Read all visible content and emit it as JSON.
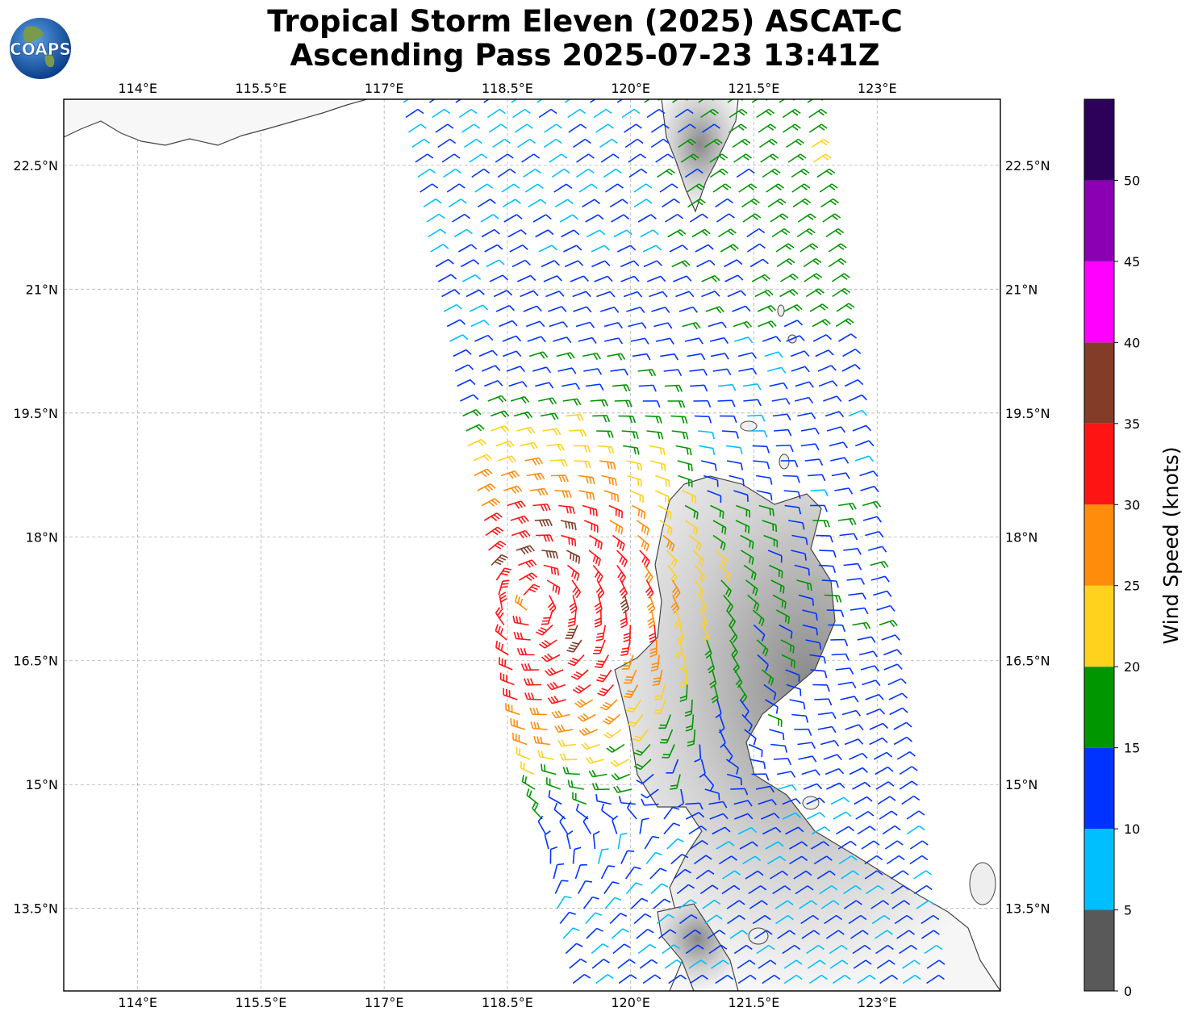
{
  "title": {
    "line1": "Tropical Storm Eleven (2025) ASCAT-C",
    "line2": "Ascending Pass 2025-07-23 13:41Z"
  },
  "logo": {
    "text": "COAPS",
    "icon": "globe-icon"
  },
  "map": {
    "lon_range": [
      113.1,
      124.5
    ],
    "lat_range": [
      12.5,
      23.3
    ],
    "lon_ticks": [
      {
        "value": 114,
        "label": "114°E"
      },
      {
        "value": 115.5,
        "label": "115.5°E"
      },
      {
        "value": 117,
        "label": "117°E"
      },
      {
        "value": 118.5,
        "label": "118.5°E"
      },
      {
        "value": 120,
        "label": "120°E"
      },
      {
        "value": 121.5,
        "label": "121.5°E"
      },
      {
        "value": 123,
        "label": "123°E"
      }
    ],
    "lat_ticks": [
      {
        "value": 22.5,
        "label": "22.5°N"
      },
      {
        "value": 21,
        "label": "21°N"
      },
      {
        "value": 19.5,
        "label": "19.5°N"
      },
      {
        "value": 18,
        "label": "18°N"
      },
      {
        "value": 16.5,
        "label": "16.5°N"
      },
      {
        "value": 15,
        "label": "15°N"
      },
      {
        "value": 13.5,
        "label": "13.5°N"
      }
    ],
    "grid": true,
    "storm_center": {
      "lon": 118.8,
      "lat": 17.2
    }
  },
  "colorbar": {
    "title": "Wind Speed (knots)",
    "bins": [
      {
        "min": 0,
        "max": 5,
        "color": "#595959"
      },
      {
        "min": 5,
        "max": 10,
        "color": "#00bfff"
      },
      {
        "min": 10,
        "max": 15,
        "color": "#0033ff"
      },
      {
        "min": 15,
        "max": 20,
        "color": "#009600"
      },
      {
        "min": 20,
        "max": 25,
        "color": "#ffd21e"
      },
      {
        "min": 25,
        "max": 30,
        "color": "#ff8c0a"
      },
      {
        "min": 30,
        "max": 35,
        "color": "#ff1414"
      },
      {
        "min": 35,
        "max": 40,
        "color": "#823c28"
      },
      {
        "min": 40,
        "max": 45,
        "color": "#ff00ff"
      },
      {
        "min": 45,
        "max": 50,
        "color": "#8c00b4"
      },
      {
        "min": 50,
        "max": 55,
        "color": "#2d005a"
      }
    ],
    "tick_labels": [
      "0",
      "5",
      "10",
      "15",
      "20",
      "25",
      "30",
      "35",
      "40",
      "45",
      "50"
    ]
  }
}
